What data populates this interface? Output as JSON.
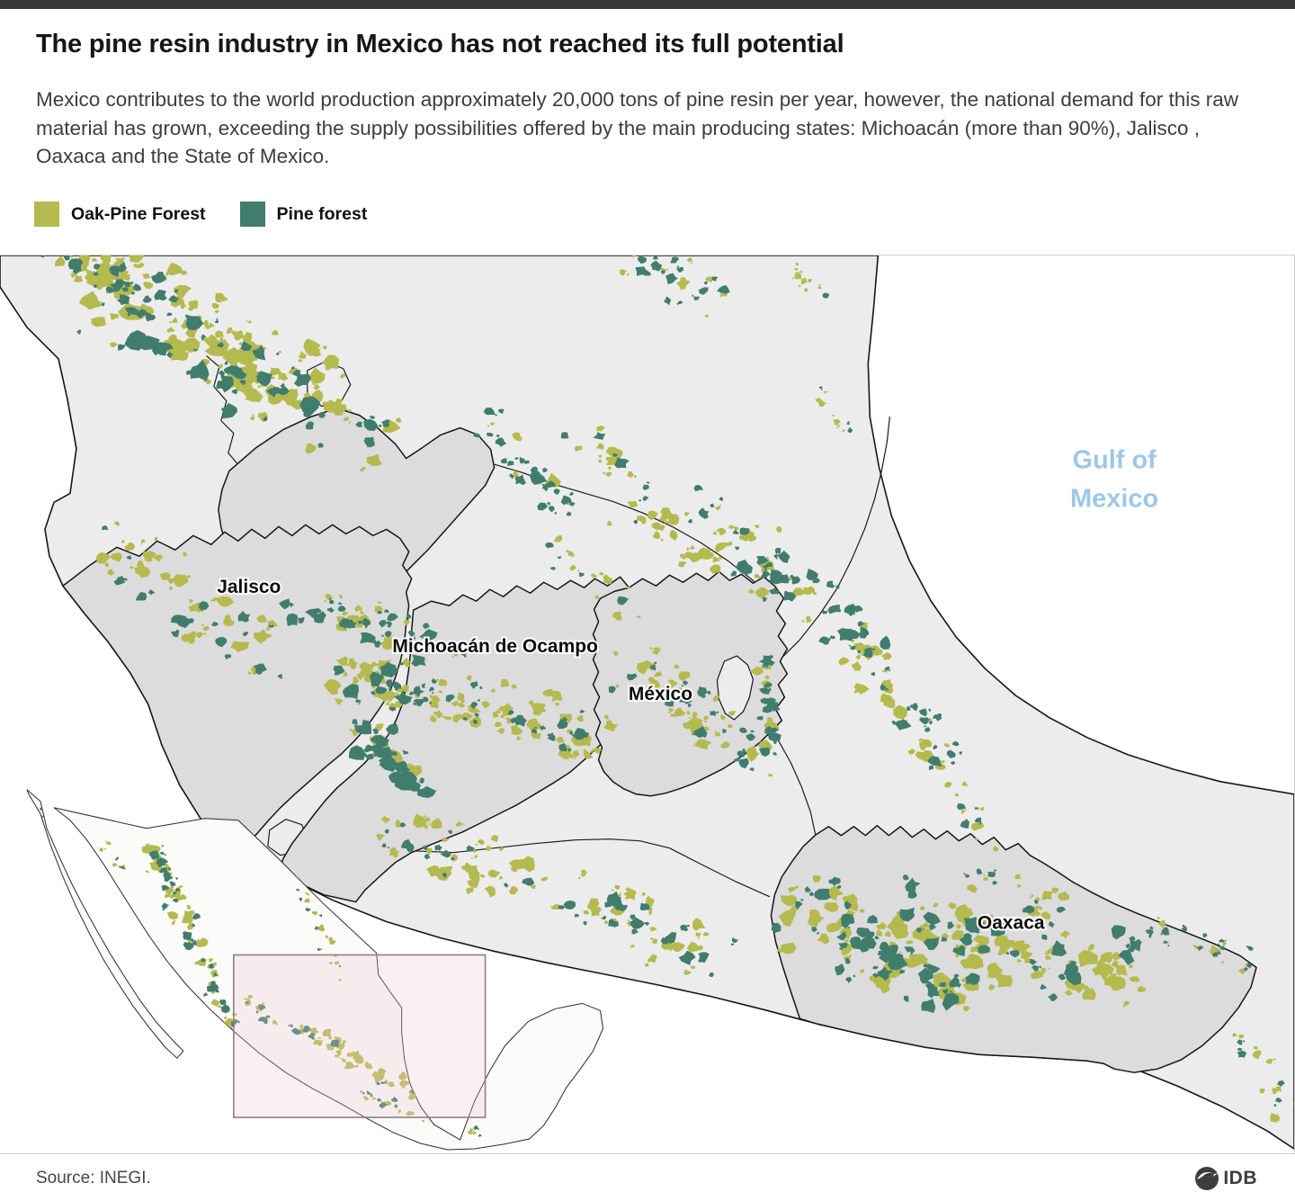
{
  "topbar": {
    "color": "#383838"
  },
  "header": {
    "title": "The pine resin industry in Mexico has not reached its full potential",
    "subtitle": "Mexico contributes to the world production approximately 20,000 tons of pine resin per year, however, the national demand for this raw material has grown, exceeding the supply possibilities offered by the main producing states: Michoacán (more than 90%), Jalisco , Oaxaca and the State of Mexico."
  },
  "legend": {
    "items": [
      {
        "label": "Oak-Pine Forest",
        "color": "#b4ba4e"
      },
      {
        "label": "Pine forest",
        "color": "#417d6d"
      }
    ]
  },
  "map": {
    "ocean_label": {
      "line1": "Gulf of",
      "line2": "Mexico",
      "color": "#9dc8e8"
    },
    "state_labels": [
      {
        "name": "Jalisco"
      },
      {
        "name": "Michoacán de Ocampo"
      },
      {
        "name": "México"
      },
      {
        "name": "Oaxaca"
      }
    ],
    "colors": {
      "sea": "#ffffff",
      "land": "#ececec",
      "highlight_state": "#dcdcdc",
      "boundary": "#1a1a1a",
      "inset_land": "#fbfbf9",
      "inset_box_border": "#8f8084",
      "inset_box_fill": "#ecc7cf",
      "frame": "#cfcfcf"
    }
  },
  "footer": {
    "source": "Source: INEGI.",
    "logo_text": "IDB"
  }
}
